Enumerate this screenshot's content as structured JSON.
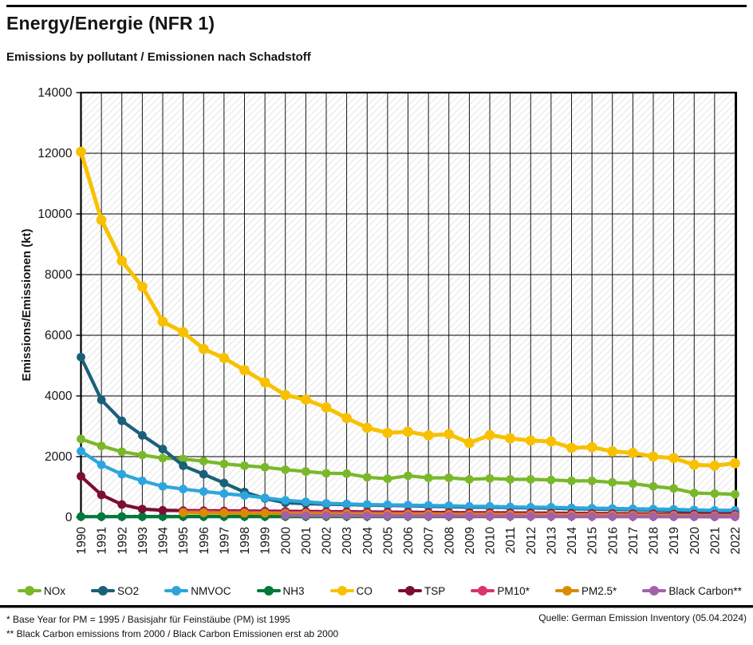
{
  "header": {
    "title": "Energy/Energie (NFR 1)",
    "subtitle": "Emissions by pollutant / Emissionen nach Schadstoff"
  },
  "chart_data": {
    "type": "line",
    "title": "Energy/Energie (NFR 1) — Emissions by pollutant / Emissionen nach Schadstoff",
    "xlabel": "",
    "ylabel": "Emissions/Emissionen (kt)",
    "ylim": [
      0,
      14000
    ],
    "ytick_step": 2000,
    "yticks": [
      0,
      2000,
      4000,
      6000,
      8000,
      10000,
      12000,
      14000
    ],
    "grid": true,
    "plot_background": "diagonal-hatch",
    "legend_position": "bottom",
    "x": [
      1990,
      1991,
      1992,
      1993,
      1994,
      1995,
      1996,
      1997,
      1998,
      1999,
      2000,
      2001,
      2002,
      2003,
      2004,
      2005,
      2006,
      2007,
      2008,
      2009,
      2010,
      2011,
      2012,
      2013,
      2014,
      2015,
      2016,
      2017,
      2018,
      2019,
      2020,
      2021,
      2022
    ],
    "series": [
      {
        "name": "NOx",
        "color": "#7ab829",
        "values": [
          2580,
          2350,
          2160,
          2050,
          1950,
          1920,
          1850,
          1760,
          1700,
          1650,
          1570,
          1510,
          1450,
          1440,
          1320,
          1270,
          1370,
          1300,
          1300,
          1250,
          1280,
          1250,
          1250,
          1230,
          1200,
          1200,
          1150,
          1110,
          1020,
          950,
          800,
          780,
          760
        ]
      },
      {
        "name": "SO2",
        "color": "#1a6079",
        "values": [
          5280,
          3870,
          3180,
          2700,
          2250,
          1700,
          1420,
          1130,
          830,
          620,
          480,
          450,
          430,
          420,
          400,
          390,
          380,
          360,
          350,
          330,
          330,
          320,
          310,
          300,
          280,
          270,
          260,
          250,
          240,
          220,
          200,
          200,
          200
        ]
      },
      {
        "name": "NMVOC",
        "color": "#2ca6dd",
        "values": [
          2180,
          1730,
          1420,
          1200,
          1020,
          930,
          850,
          780,
          720,
          640,
          560,
          510,
          460,
          440,
          420,
          410,
          400,
          390,
          380,
          360,
          360,
          340,
          330,
          330,
          310,
          300,
          290,
          280,
          270,
          260,
          240,
          230,
          230
        ]
      },
      {
        "name": "NH3",
        "color": "#00783c",
        "values": [
          22,
          22,
          23,
          23,
          24,
          24,
          25,
          25,
          26,
          26,
          27,
          27,
          28,
          28,
          29,
          29,
          30,
          30,
          31,
          31,
          32,
          32,
          33,
          33,
          34,
          34,
          35,
          35,
          36,
          36,
          37,
          37,
          38
        ]
      },
      {
        "name": "CO",
        "color": "#f8c100",
        "values": [
          12050,
          9800,
          8450,
          7600,
          6450,
          6100,
          5550,
          5250,
          4850,
          4450,
          4030,
          3880,
          3620,
          3270,
          2950,
          2780,
          2820,
          2700,
          2740,
          2450,
          2710,
          2600,
          2530,
          2500,
          2290,
          2310,
          2170,
          2120,
          2000,
          1950,
          1730,
          1700,
          1780
        ]
      },
      {
        "name": "TSP",
        "color": "#7c0d33",
        "values": [
          1350,
          740,
          420,
          270,
          230,
          220,
          215,
          210,
          205,
          200,
          195,
          190,
          185,
          180,
          175,
          170,
          165,
          160,
          155,
          150,
          148,
          145,
          140,
          135,
          130,
          125,
          120,
          115,
          110,
          105,
          100,
          95,
          95
        ]
      },
      {
        "name": "PM10*",
        "color": "#db3270",
        "values": [
          null,
          null,
          null,
          null,
          null,
          185,
          180,
          175,
          170,
          165,
          160,
          155,
          150,
          145,
          140,
          135,
          130,
          125,
          120,
          115,
          115,
          110,
          105,
          100,
          95,
          95,
          90,
          85,
          80,
          75,
          70,
          70,
          65
        ]
      },
      {
        "name": "PM2.5*",
        "color": "#d98c00",
        "values": [
          null,
          null,
          null,
          null,
          null,
          150,
          145,
          140,
          135,
          130,
          125,
          120,
          115,
          110,
          105,
          100,
          95,
          95,
          90,
          85,
          85,
          80,
          75,
          75,
          70,
          65,
          65,
          60,
          55,
          55,
          50,
          45,
          45
        ]
      },
      {
        "name": "Black Carbon**",
        "color": "#a361a8",
        "values": [
          null,
          null,
          null,
          null,
          null,
          null,
          null,
          null,
          null,
          null,
          65,
          60,
          58,
          55,
          52,
          48,
          45,
          42,
          40,
          38,
          35,
          33,
          31,
          29,
          27,
          25,
          24,
          22,
          21,
          20,
          18,
          16,
          15
        ]
      }
    ]
  },
  "footer": {
    "footnote1": "* Base Year for PM = 1995 / Basisjahr für Feinstäube (PM) ist 1995",
    "footnote2": "** Black Carbon emissions from 2000 / Black Carbon Emissionen erst ab 2000",
    "source": "Quelle: German Emission Inventory (05.04.2024)"
  }
}
